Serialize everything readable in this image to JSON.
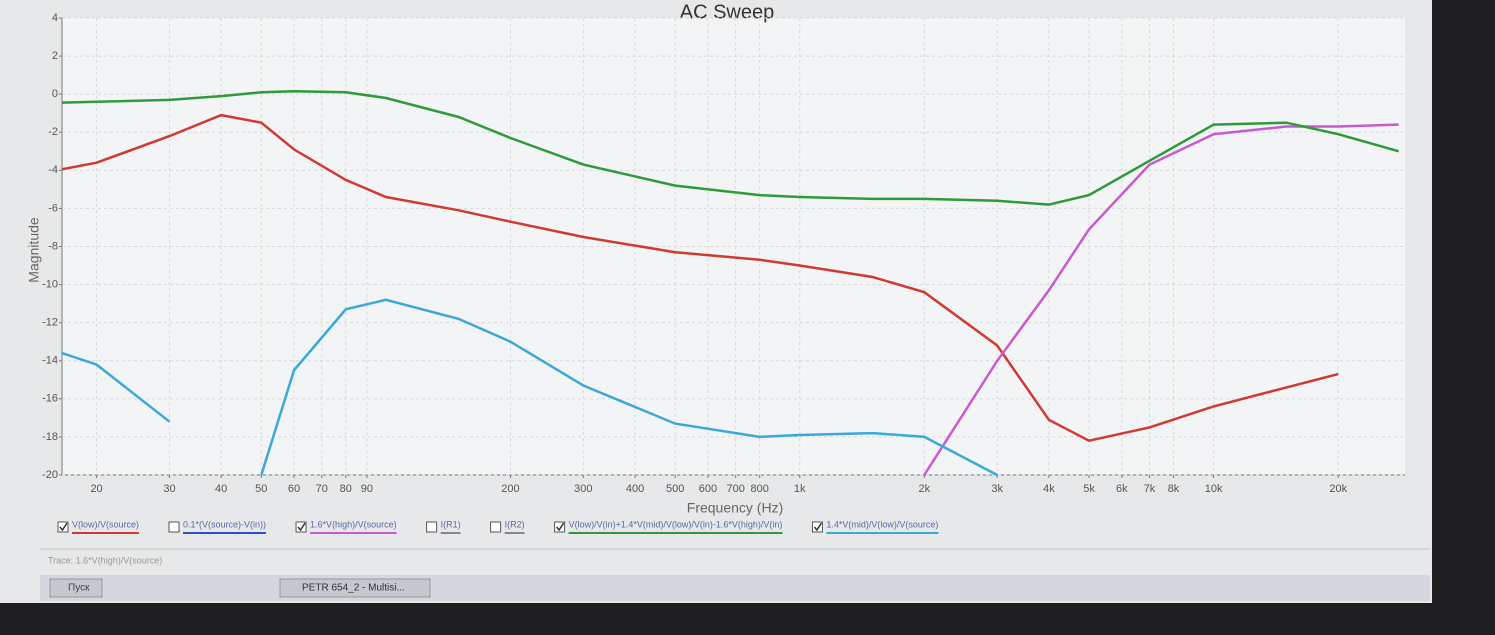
{
  "chart_data": {
    "type": "line",
    "title": "AC Sweep",
    "x_label": "Frequency (Hz)",
    "y_label": "Magnitude",
    "xscale": "log",
    "grid": true,
    "x": [
      16,
      20,
      30,
      40,
      50,
      60,
      80,
      100,
      150,
      200,
      300,
      500,
      800,
      1000,
      1500,
      2000,
      3000,
      4000,
      5000,
      7000,
      10000,
      15000,
      20000,
      28000
    ],
    "xlim": [
      16.5,
      29000
    ],
    "ylim": [
      -20,
      4
    ],
    "xticks": [
      20,
      30,
      40,
      50,
      60,
      70,
      80,
      90,
      200,
      300,
      400,
      500,
      600,
      700,
      800,
      {
        "value": 1000,
        "label": "1k"
      },
      {
        "value": 2000,
        "label": "2k"
      },
      {
        "value": 3000,
        "label": "3k"
      },
      {
        "value": 4000,
        "label": "4k"
      },
      {
        "value": 5000,
        "label": "5k"
      },
      {
        "value": 6000,
        "label": "6k"
      },
      {
        "value": 7000,
        "label": "7k"
      },
      {
        "value": 8000,
        "label": "8k"
      },
      {
        "value": 10000,
        "label": "10k"
      },
      {
        "value": 20000,
        "label": "20k"
      }
    ],
    "yticks": [
      4,
      2,
      0,
      -2,
      -4,
      -6,
      -8,
      -10,
      -12,
      -14,
      -16,
      -18,
      -20
    ],
    "series": [
      {
        "name": "V(low)/V(source)",
        "color": "#d03a32",
        "checked": true,
        "values": [
          -4.0,
          -3.6,
          -2.2,
          -1.1,
          -1.5,
          -2.9,
          -4.5,
          -5.4,
          -6.1,
          -6.7,
          -7.5,
          -8.3,
          -8.7,
          -9.0,
          -9.6,
          -10.4,
          -13.2,
          -17.1,
          -18.2,
          -17.5,
          -16.4,
          -15.4,
          -14.7,
          null
        ]
      },
      {
        "name": "0.1*(V(source)-V(in))",
        "color": "#3050c8",
        "checked": false,
        "values": [
          null,
          null,
          null,
          null,
          null,
          null,
          null,
          null,
          null,
          null,
          null,
          null,
          null,
          null,
          null,
          null,
          null,
          null,
          null,
          null,
          null,
          null,
          null,
          null
        ]
      },
      {
        "name": "1.6*V(high)/V(source)",
        "color": "#c85ad0",
        "checked": true,
        "values": [
          null,
          null,
          null,
          null,
          null,
          null,
          null,
          null,
          null,
          null,
          null,
          null,
          null,
          null,
          null,
          -20,
          -14.0,
          -10.3,
          -7.1,
          -3.7,
          -2.1,
          -1.7,
          -1.7,
          -1.6
        ]
      },
      {
        "name": "I(R1)",
        "color": "#888888",
        "checked": false,
        "values": [
          null,
          null,
          null,
          null,
          null,
          null,
          null,
          null,
          null,
          null,
          null,
          null,
          null,
          null,
          null,
          null,
          null,
          null,
          null,
          null,
          null,
          null,
          null,
          null
        ]
      },
      {
        "name": "I(R2)",
        "color": "#888888",
        "checked": false,
        "values": [
          null,
          null,
          null,
          null,
          null,
          null,
          null,
          null,
          null,
          null,
          null,
          null,
          null,
          null,
          null,
          null,
          null,
          null,
          null,
          null,
          null,
          null,
          null,
          null
        ]
      },
      {
        "name": "V(low)/V(in)+1.4*V(mid)/V(low)/V(in)-1.6*V(high)/V(in)",
        "color": "#2e9a3a",
        "checked": true,
        "values": [
          -0.45,
          -0.4,
          -0.3,
          -0.1,
          0.1,
          0.15,
          0.1,
          -0.2,
          -1.2,
          -2.3,
          -3.7,
          -4.8,
          -5.3,
          -5.4,
          -5.5,
          -5.5,
          -5.6,
          -5.8,
          -5.3,
          -3.5,
          -1.6,
          -1.5,
          -2.1,
          -3.0
        ]
      },
      {
        "name": "1.4*V(mid)/V(low)/V(source)",
        "color": "#3aa8d8",
        "checked": true,
        "values": [
          -13.5,
          -14.2,
          -17.2,
          null,
          -20,
          -14.5,
          -11.3,
          -10.8,
          -11.8,
          -13.0,
          -15.3,
          -17.3,
          -18.0,
          -17.9,
          -17.8,
          -18.0,
          -20,
          null,
          null,
          null,
          null,
          null,
          null,
          null
        ]
      }
    ]
  },
  "status_bar": {
    "text": "Trace: 1.6*V(high)/V(source)"
  },
  "taskbar": {
    "start": "Пуск",
    "window": "PETR 654_2 - Multisi..."
  }
}
